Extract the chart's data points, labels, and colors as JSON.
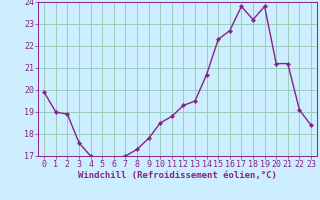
{
  "x": [
    0,
    1,
    2,
    3,
    4,
    5,
    6,
    7,
    8,
    9,
    10,
    11,
    12,
    13,
    14,
    15,
    16,
    17,
    18,
    19,
    20,
    21,
    22,
    23
  ],
  "y": [
    19.9,
    19.0,
    18.9,
    17.6,
    17.0,
    16.8,
    16.9,
    17.0,
    17.3,
    17.8,
    18.5,
    18.8,
    19.3,
    19.5,
    20.7,
    22.3,
    22.7,
    23.8,
    23.2,
    23.8,
    21.2,
    21.2,
    19.1,
    18.4
  ],
  "line_color": "#882288",
  "marker": "D",
  "marker_size": 2.2,
  "line_width": 1.0,
  "background_color": "#cceeff",
  "grid_color": "#99ccbb",
  "xlabel": "Windchill (Refroidissement éolien,°C)",
  "ylim": [
    17,
    24
  ],
  "xlim": [
    -0.5,
    23.5
  ],
  "yticks": [
    17,
    18,
    19,
    20,
    21,
    22,
    23,
    24
  ],
  "xticks": [
    0,
    1,
    2,
    3,
    4,
    5,
    6,
    7,
    8,
    9,
    10,
    11,
    12,
    13,
    14,
    15,
    16,
    17,
    18,
    19,
    20,
    21,
    22,
    23
  ],
  "xlabel_fontsize": 6.5,
  "tick_fontsize": 6.0,
  "label_color": "#882288"
}
